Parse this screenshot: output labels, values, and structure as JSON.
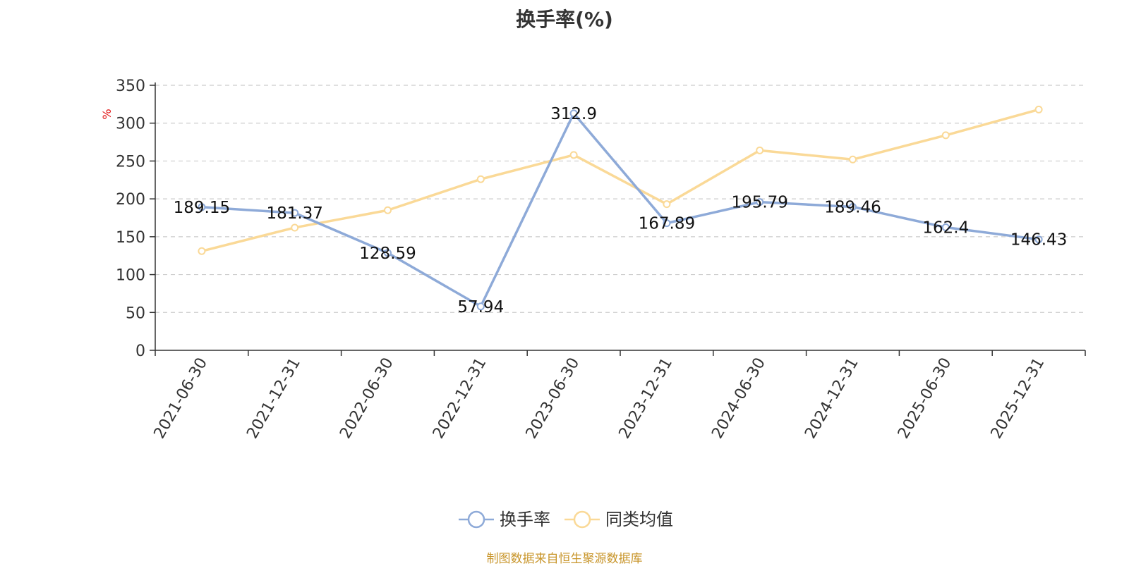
{
  "title": "换手率(%)",
  "source": "制图数据来自恒生聚源数据库",
  "chart_data": {
    "type": "line",
    "title": "换手率(%)",
    "ylabel": "%",
    "xlabel": "",
    "categories": [
      "2021-06-30",
      "2021-12-31",
      "2022-06-30",
      "2022-12-31",
      "2023-06-30",
      "2023-12-31",
      "2024-06-30",
      "2024-12-31",
      "2025-06-30",
      "2025-12-31"
    ],
    "ylim": [
      0,
      350
    ],
    "yticks": [
      0,
      50,
      100,
      150,
      200,
      250,
      300,
      350
    ],
    "grid": true,
    "legend_position": "bottom",
    "series": [
      {
        "name": "换手率",
        "color": "#8eaad8",
        "values": [
          189.15,
          181.37,
          128.59,
          57.94,
          312.9,
          167.89,
          195.79,
          189.46,
          162.4,
          146.43
        ],
        "labels": [
          "189.15",
          "181.37",
          "128.59",
          "57.94",
          "312.9",
          "167.89",
          "195.79",
          "189.46",
          "162.4",
          "146.43"
        ]
      },
      {
        "name": "同类均值",
        "color": "#fad997",
        "values": [
          131,
          162,
          185,
          226,
          258,
          193,
          264,
          252,
          284,
          318
        ]
      }
    ]
  }
}
